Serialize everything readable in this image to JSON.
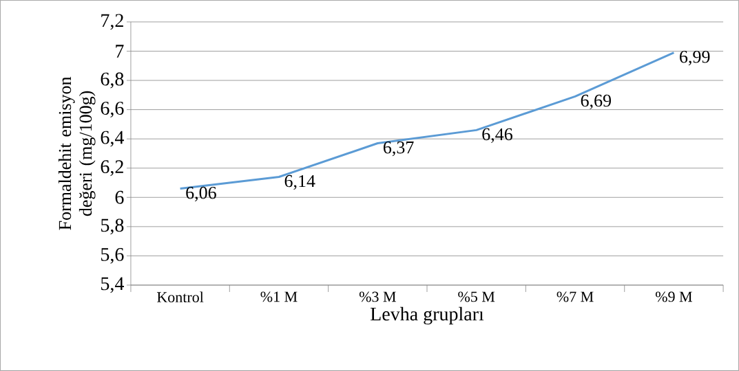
{
  "chart_data": {
    "type": "line",
    "xlabel": "Levha grupları",
    "ylabel": "Formaldehit emisyon değeri (mg/100g)",
    "categories": [
      "Kontrol",
      "%1 M",
      "%3 M",
      "%5 M",
      "%7 M",
      "%9 M"
    ],
    "series": [
      {
        "color": "#5b9bd5",
        "values": [
          6.06,
          6.14,
          6.37,
          6.46,
          6.69,
          6.99
        ],
        "value_labels": [
          "6,06",
          "6,14",
          "6,37",
          "6,46",
          "6,69",
          "6,99"
        ]
      }
    ],
    "ylim": [
      5.4,
      7.2
    ],
    "yticks": [
      {
        "value": 5.4,
        "label": "5,4"
      },
      {
        "value": 5.6,
        "label": "5,6"
      },
      {
        "value": 5.8,
        "label": "5,8"
      },
      6,
      {
        "value": 6.2,
        "label": "6,2"
      },
      {
        "value": 6.4,
        "label": "6,4"
      },
      {
        "value": 6.6,
        "label": "6,6"
      },
      {
        "value": 6.8,
        "label": "6,8"
      },
      7,
      {
        "value": 7.2,
        "label": "7,2"
      }
    ],
    "grid": "y",
    "legend": false,
    "marker": "none",
    "line_style": "solid"
  }
}
